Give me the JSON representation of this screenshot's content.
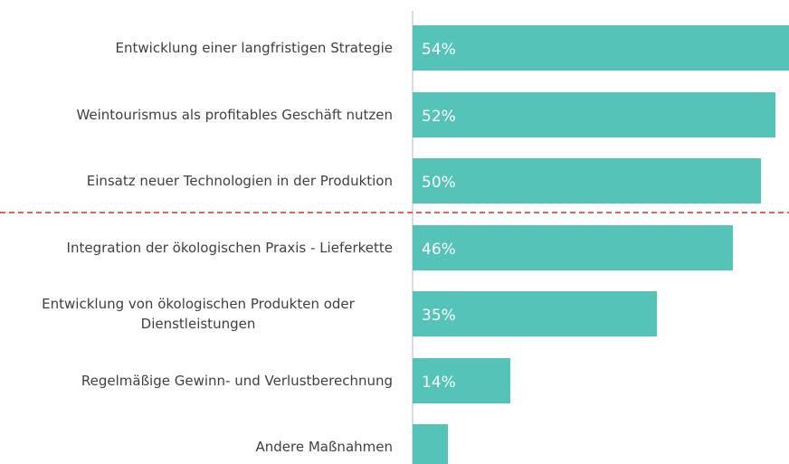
{
  "chart_data": {
    "type": "bar",
    "orientation": "horizontal",
    "categories": [
      "Entwicklung einer langfristigen Strategie",
      "Weintourismus als profitables Geschäft nutzen",
      "Einsatz neuer Technologien in der Produktion",
      "Integration der ökologischen Praxis - Lieferkette",
      "Entwicklung von ökologischen Produkten oder Dienstleistungen",
      "Regelmäßige Gewinn- und Verlustberechnung",
      "Andere Maßnahmen"
    ],
    "values": [
      54,
      52,
      50,
      46,
      35,
      14,
      5
    ],
    "value_labels": [
      "54%",
      "52%",
      "50%",
      "46%",
      "35%",
      "14%",
      null
    ],
    "color": "#56c3b8",
    "xlim": [
      0,
      54
    ]
  }
}
